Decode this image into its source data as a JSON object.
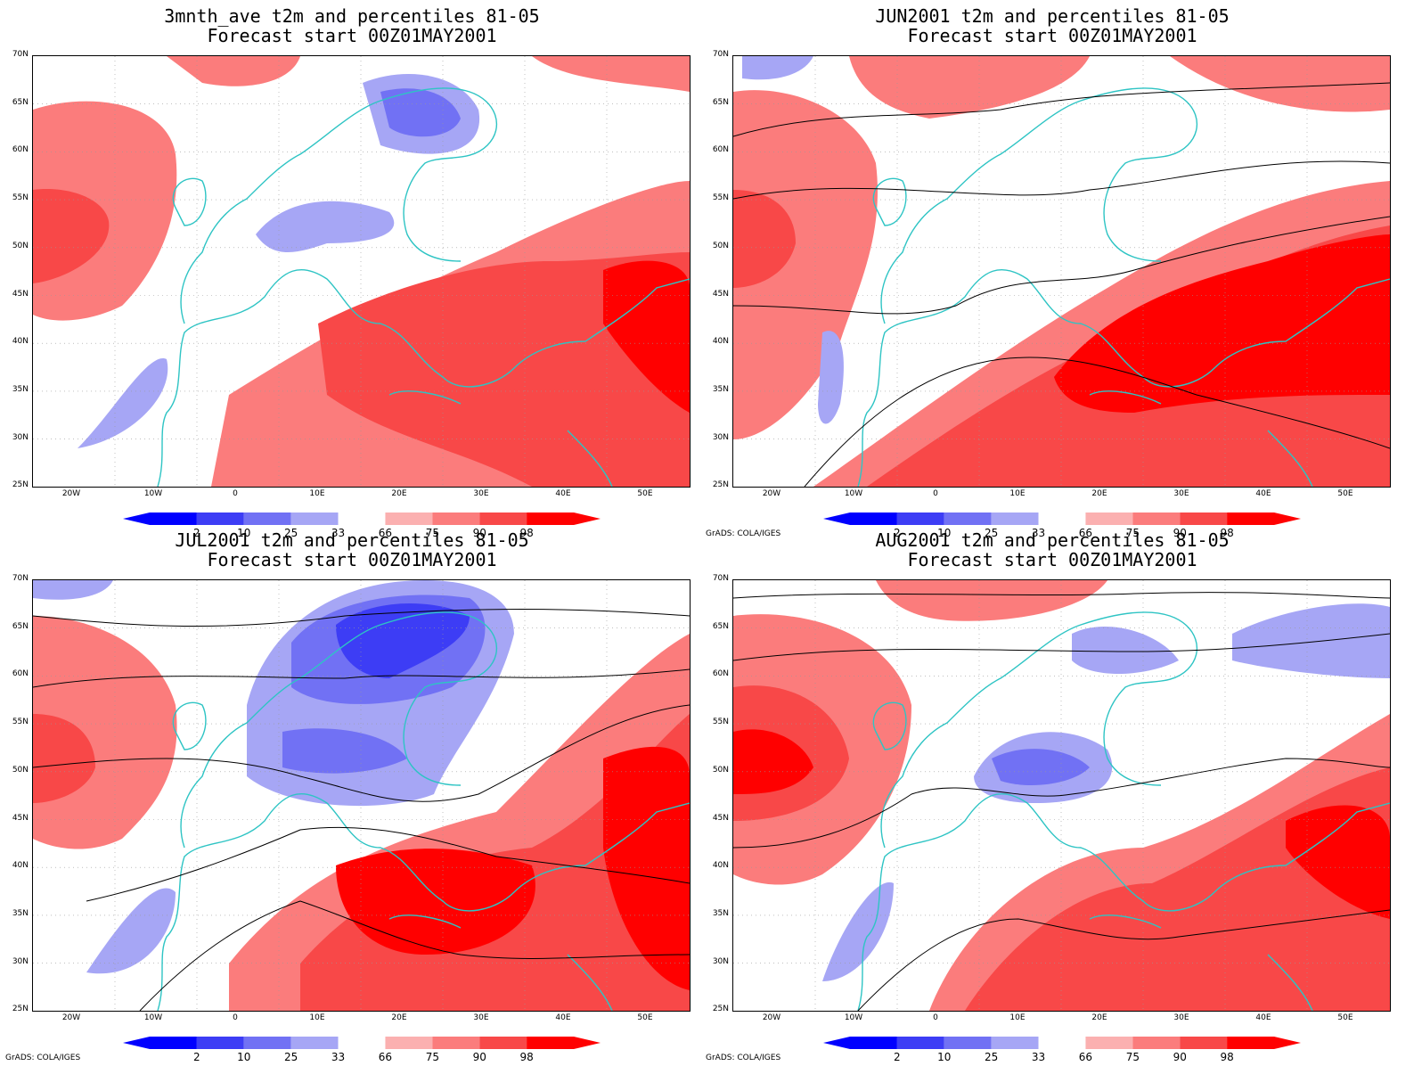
{
  "legend": {
    "labels": [
      "2",
      "10",
      "25",
      "33",
      "66",
      "75",
      "90",
      "98"
    ],
    "colors": [
      "#0000ff",
      "#3d3df5",
      "#7171f4",
      "#a6a6f5",
      "#ffffff",
      "#fbb0b0",
      "#fb7c7c",
      "#f84848",
      "#ff0000"
    ]
  },
  "colors": {
    "coast": "#2ec4c4",
    "contour": "#000000"
  },
  "axes": {
    "lat_labels": [
      "70N",
      "65N",
      "60N",
      "55N",
      "50N",
      "45N",
      "40N",
      "35N",
      "30N",
      "25N"
    ],
    "lon_labels": [
      "20W",
      "10W",
      "0",
      "10E",
      "20E",
      "30E",
      "40E",
      "50E"
    ]
  },
  "credit": "GrADS: COLA/IGES",
  "panels": [
    {
      "title1": "3mnth_ave t2m and percentiles 81-05",
      "title2": "Forecast start 00Z01MAY2001",
      "credit": "",
      "contours": []
    },
    {
      "title1": "JUN2001 t2m and percentiles 81-05",
      "title2": "Forecast start 00Z01MAY2001",
      "credit": "GrADS: COLA/IGES",
      "contours": [
        "4",
        "8",
        "12",
        "16",
        "20",
        "24",
        "28",
        "32",
        "36"
      ]
    },
    {
      "title1": "JUL2001 t2m and percentiles 81-05",
      "title2": "Forecast start 00Z01MAY2001",
      "credit": "GrADS: COLA/IGES",
      "contours": [
        "4",
        "8",
        "12",
        "16",
        "20",
        "24",
        "28",
        "32",
        "36"
      ]
    },
    {
      "title1": "AUG2001 t2m and percentiles 81-05",
      "title2": "Forecast start 00Z01MAY2001",
      "credit": "GrADS: COLA/IGES",
      "contours": [
        "4",
        "8",
        "12",
        "16",
        "20",
        "24",
        "28",
        "32",
        "36"
      ]
    }
  ]
}
